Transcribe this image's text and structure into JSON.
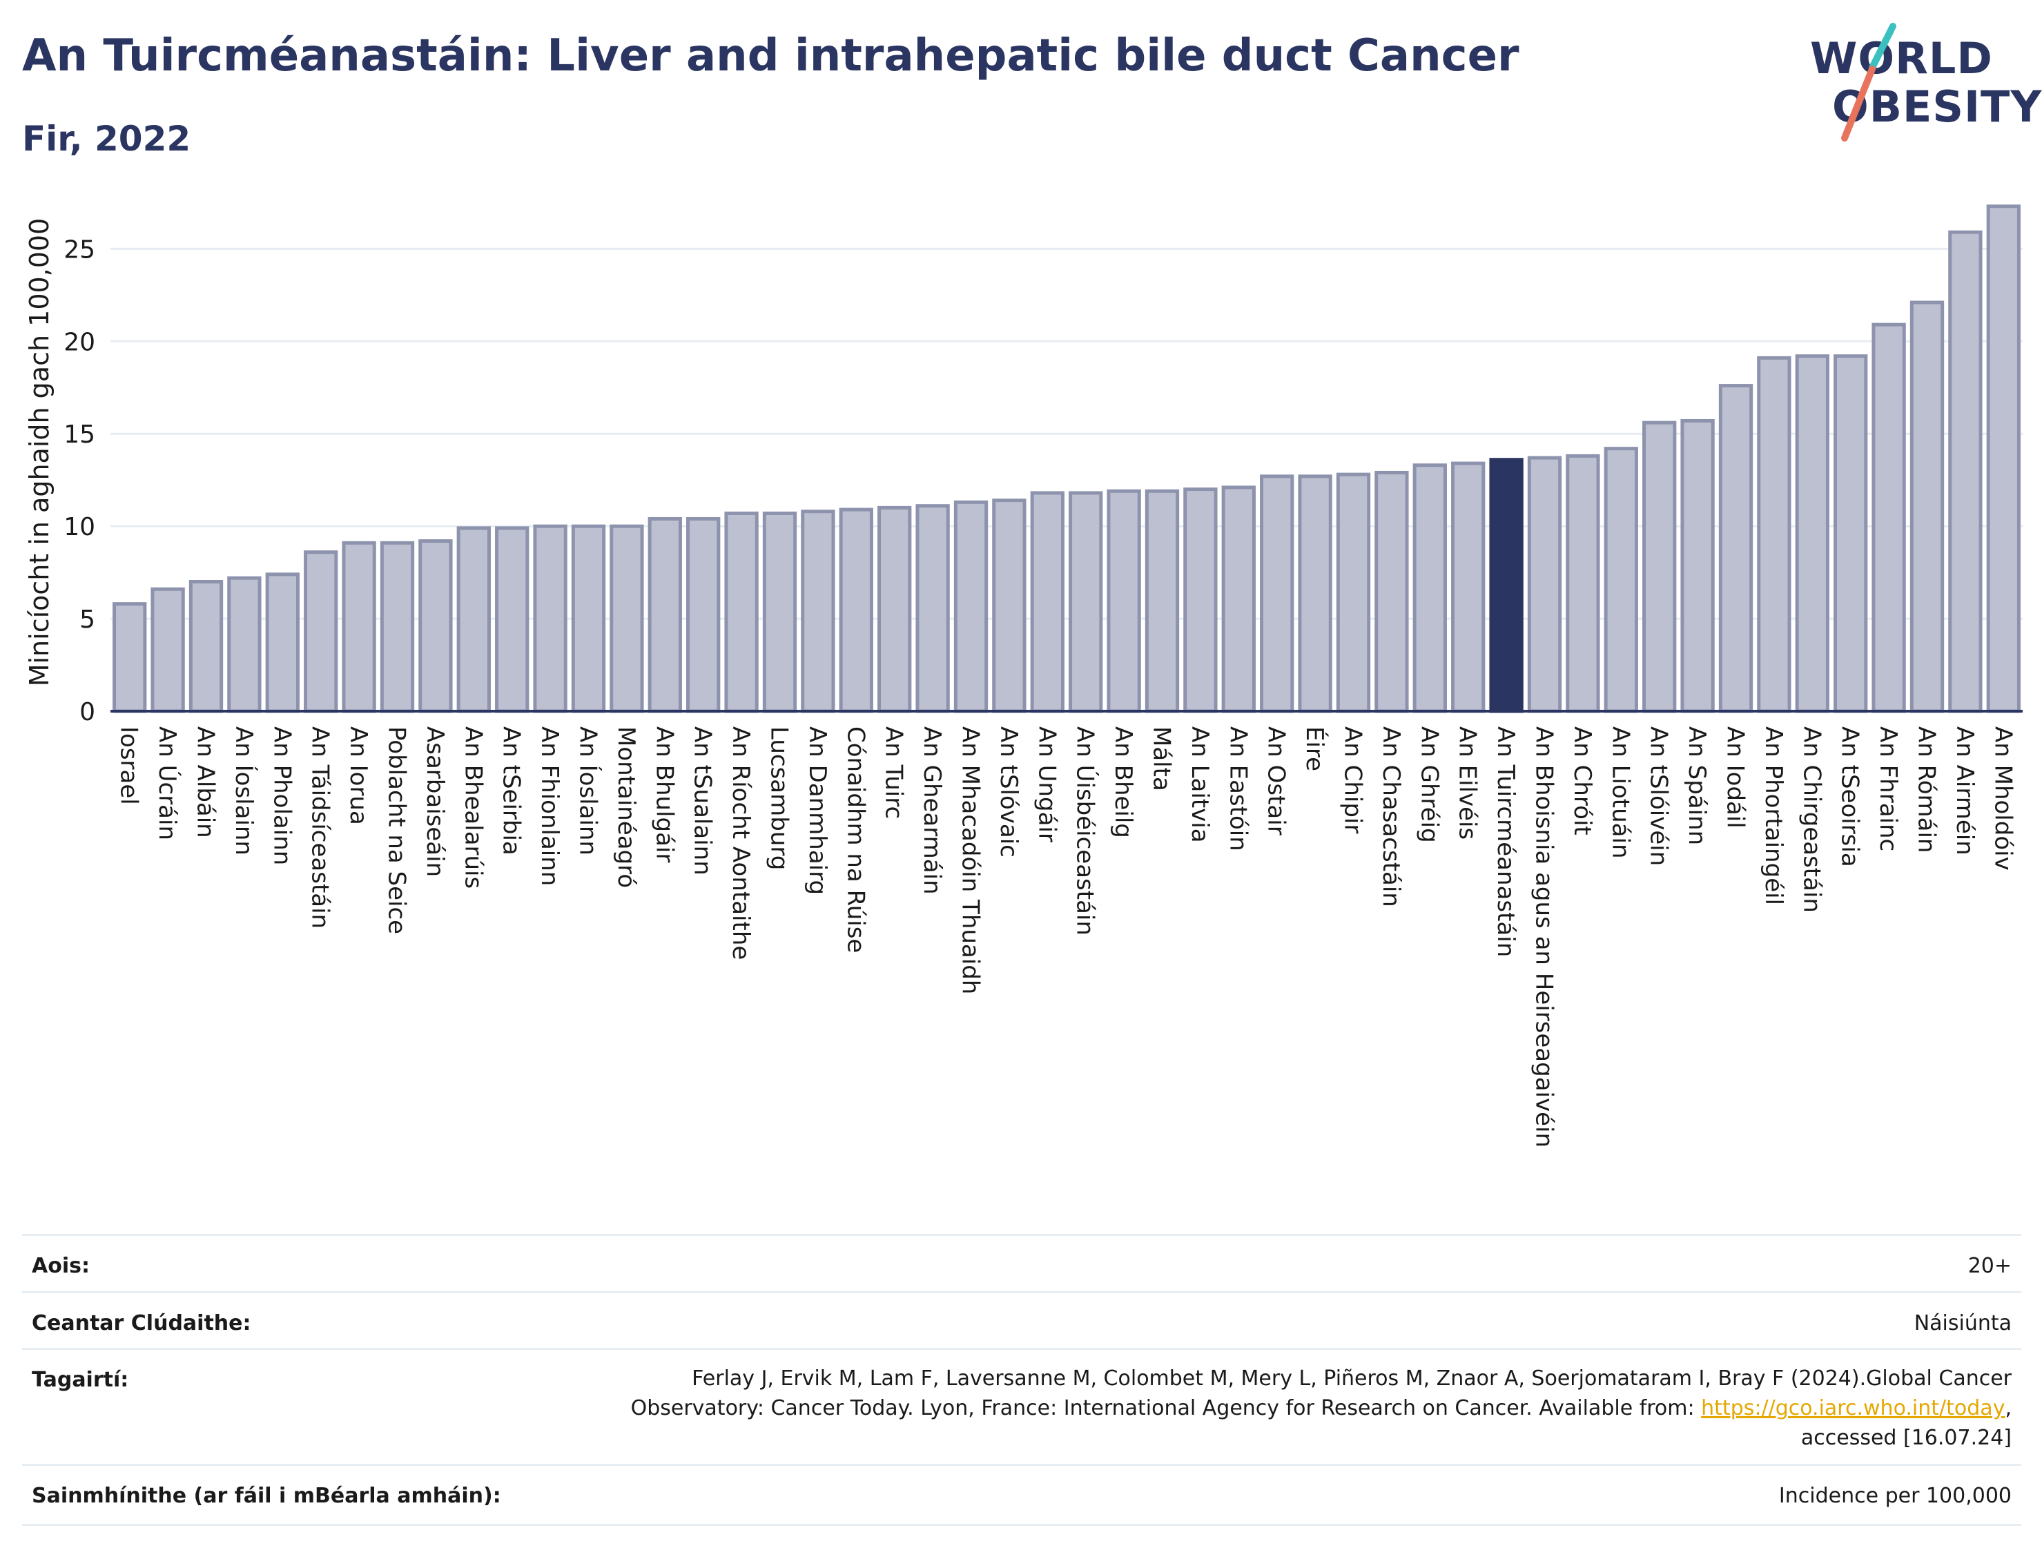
{
  "header": {
    "title": "An Tuircméanastáin: Liver and intrahepatic bile duct Cancer",
    "subtitle": "Fir, 2022"
  },
  "logo": {
    "line1": "WORLD",
    "line2": "OBESITY",
    "colors": {
      "text": "#2b3561",
      "slash_top": "#3bbfbf",
      "slash_bottom": "#e8735c"
    }
  },
  "chart_data": {
    "type": "bar",
    "ylabel": "Minicíocht in aghaidh gach 100,000",
    "xlabel": "",
    "ylim": [
      0,
      28
    ],
    "yticks": [
      0,
      5,
      10,
      15,
      20,
      25
    ],
    "grid": true,
    "highlight": "An Tuircméanastáin",
    "colors": {
      "bar": "#bcc0d0",
      "bar_edge": "#8e93ad",
      "highlight": "#2b3561",
      "grid": "#e8ecf2",
      "axis": "#2b3561"
    },
    "categories": [
      "Iosrael",
      "An Úcráin",
      "An Albáin",
      "An Íoslainn",
      "An Pholainn",
      "An Táidsíceastáin",
      "An Iorua",
      "Poblacht na Seice",
      "Asarbaiseáin",
      "An Bhealarúis",
      "An tSeirbia",
      "An Fhionlainn",
      "An Íoslainn",
      "Montainéagró",
      "An Bhulgáir",
      "An tSualainn",
      "An Ríocht Aontaithe",
      "Lucsamburg",
      "An Danmhairg",
      "Cónaidhm na Rúise",
      "An Tuirc",
      "An Ghearmáin",
      "An Mhacadóin Thuaidh",
      "An tSlóvaic",
      "An Ungáir",
      "An Úisbéiceastáin",
      "An Bheilg",
      "Málta",
      "An Laitvia",
      "An Eastóin",
      "An Ostair",
      "Éire",
      "An Chipir",
      "An Chasacstáin",
      "An Ghréig",
      "An Eilvéis",
      "An Tuircméanastáin",
      "An Bhoisnia agus an Heirseagaivéin",
      "An Chróit",
      "An Liotuáin",
      "An tSlóivéin",
      "An Spáinn",
      "An Iodáil",
      "An Phortaingéil",
      "An Chirgeastáin",
      "An tSeoirsia",
      "An Fhrainc",
      "An Rómáin",
      "An Airméin",
      "An Mholdóiv"
    ],
    "values": [
      5.8,
      6.6,
      7.0,
      7.2,
      7.4,
      8.6,
      9.1,
      9.1,
      9.2,
      9.9,
      9.9,
      10.0,
      10.0,
      10.0,
      10.4,
      10.4,
      10.7,
      10.7,
      10.8,
      10.9,
      11.0,
      11.1,
      11.3,
      11.4,
      11.8,
      11.8,
      11.9,
      11.9,
      12.0,
      12.1,
      12.7,
      12.7,
      12.8,
      12.9,
      13.3,
      13.4,
      13.6,
      13.7,
      13.8,
      14.2,
      15.6,
      15.7,
      17.6,
      19.1,
      19.2,
      19.2,
      20.9,
      22.1,
      25.9,
      27.3
    ]
  },
  "meta": {
    "age_label": "Aois:",
    "age_value": "20+",
    "area_label": "Ceantar Clúdaithe:",
    "area_value": "Náisiúnta",
    "ref_label": "Tagairtí:",
    "ref_line1": "Ferlay J, Ervik M, Lam F, Laversanne M, Colombet M, Mery L, Piñeros M, Znaor A, Soerjomataram I, Bray F (2024).Global Cancer",
    "ref_line2_pre": "Observatory: Cancer Today. Lyon, France: International Agency for Research on Cancer. Available from: ",
    "ref_link": "https://gco.iarc.who.int/today",
    "ref_line2_post": ",",
    "ref_line3": "accessed [16.07.24]",
    "def_label": "Sainmhínithe (ar fáil i mBéarla amháin):",
    "def_value": "Incidence per 100,000"
  }
}
